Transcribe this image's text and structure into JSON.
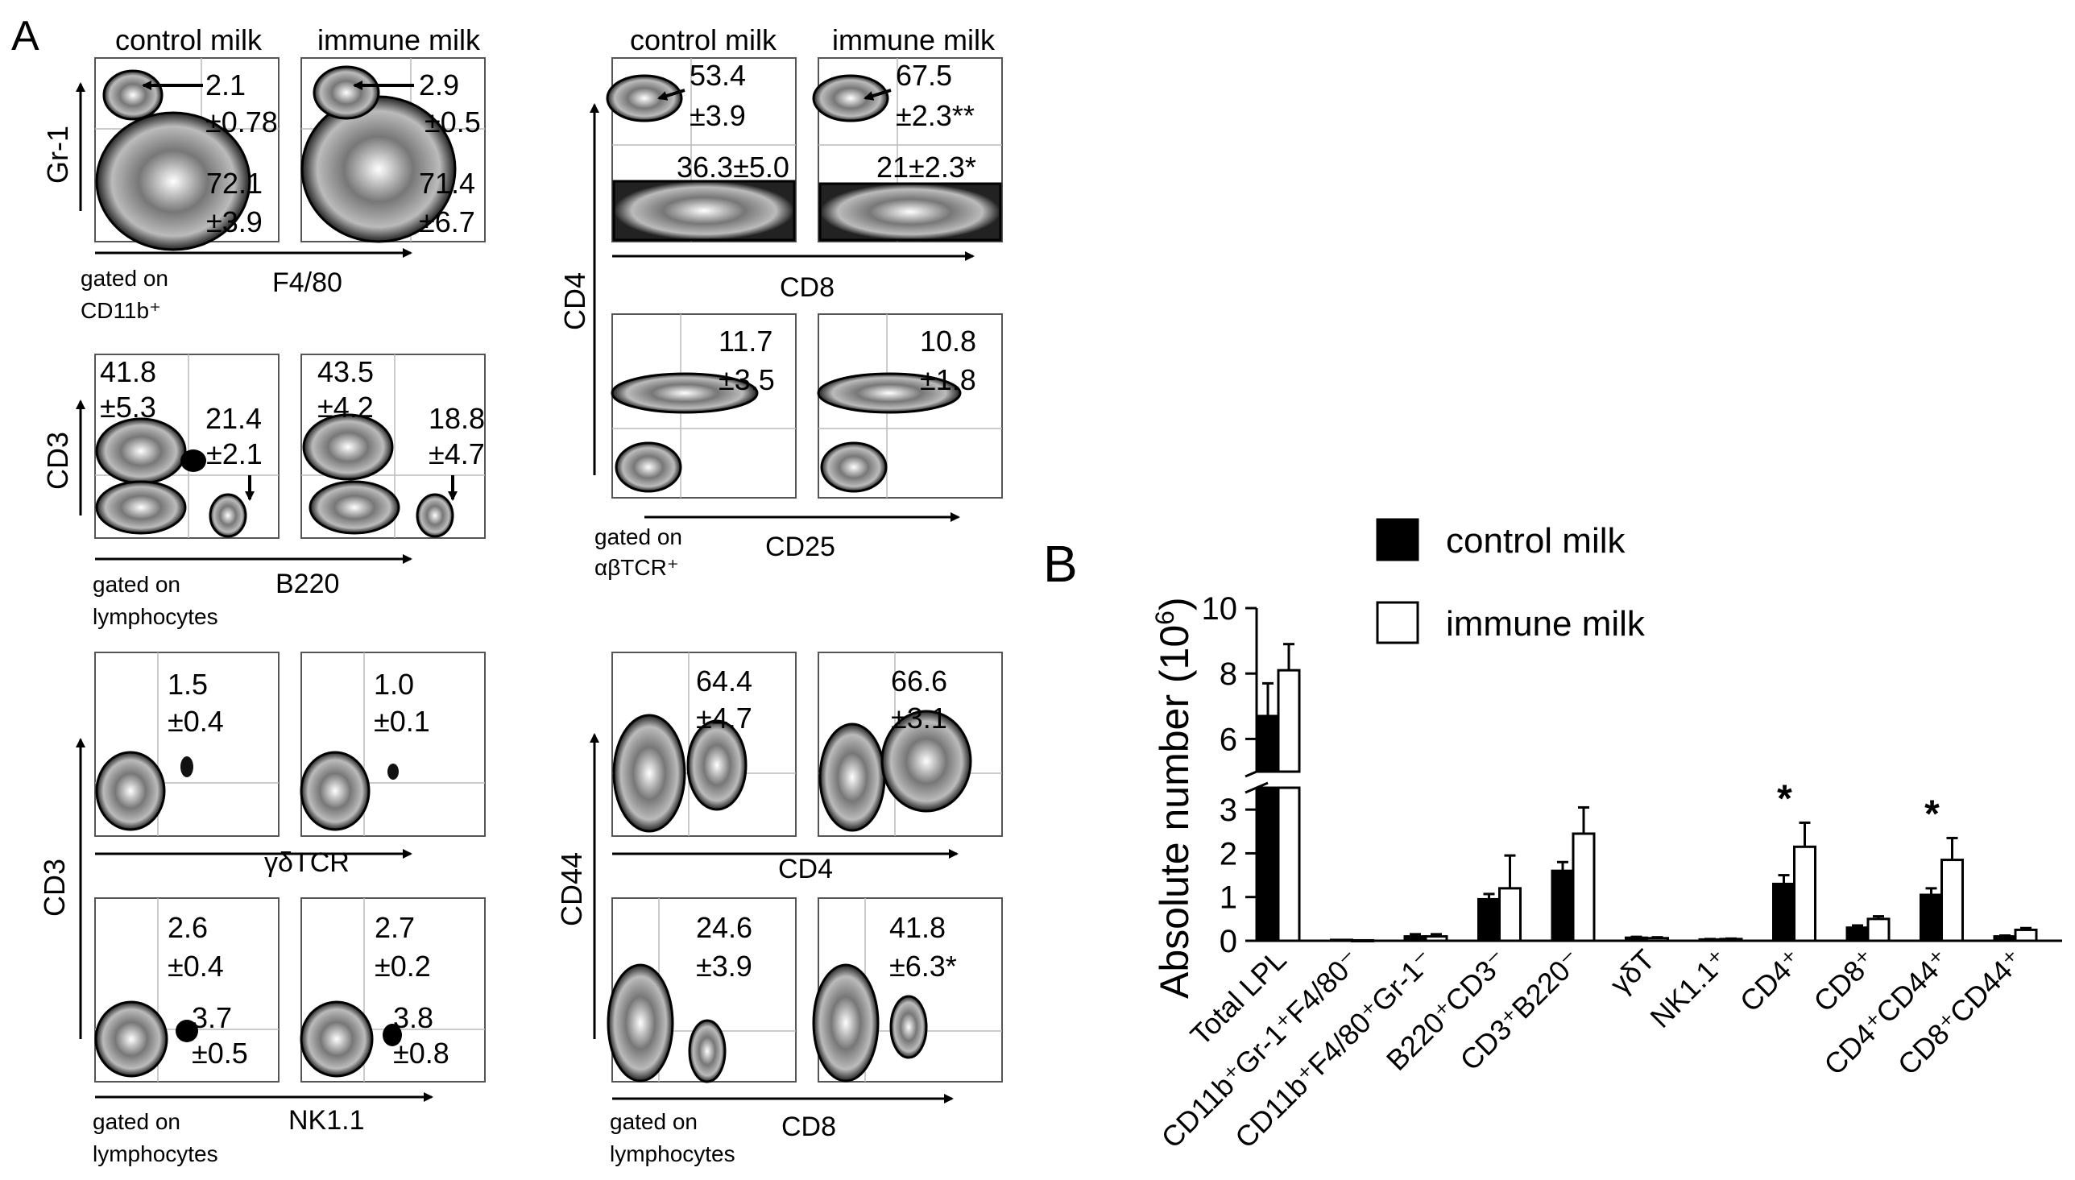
{
  "panel_labels": {
    "a": "A",
    "b": "B"
  },
  "flow": {
    "col_headers": {
      "control": "control milk",
      "immune": "immune milk"
    },
    "blocks": [
      {
        "id": "gr1",
        "y_axis": "Gr-1",
        "x_axis": "F4/80",
        "gate": [
          "gated on",
          "CD11b⁺"
        ],
        "control": [
          "2.1",
          "±0.78",
          "72.1",
          "±3.9"
        ],
        "immune": [
          "2.9",
          "±0.5",
          "71.4",
          "±6.7"
        ]
      },
      {
        "id": "cd3b220",
        "y_axis": "CD3",
        "x_axis": "B220",
        "gate": [
          "gated on",
          "lymphocytes"
        ],
        "control": [
          "41.8",
          "±5.3",
          "21.4",
          "±2.1"
        ],
        "immune": [
          "43.5",
          "±4.2",
          "18.8",
          "±4.7"
        ]
      },
      {
        "id": "gdtcr",
        "y_axis": "CD3",
        "x_axis": "γδTCR",
        "control": [
          "1.5",
          "±0.4"
        ],
        "immune": [
          "1.0",
          "±0.1"
        ]
      },
      {
        "id": "nk11",
        "x_axis": "NK1.1",
        "gate": [
          "gated on",
          "lymphocytes"
        ],
        "control": [
          "2.6",
          "±0.4",
          "3.7",
          "±0.5"
        ],
        "immune": [
          "2.7",
          "±0.2",
          "3.8",
          "±0.8"
        ]
      },
      {
        "id": "cd4cd8",
        "y_axis": "CD4",
        "x_axis": "CD8",
        "control": [
          "53.4",
          "±3.9",
          "36.3±5.0"
        ],
        "immune": [
          "67.5",
          "±2.3**",
          "21±2.3*"
        ]
      },
      {
        "id": "cd25",
        "x_axis": "CD25",
        "gate": [
          "gated on",
          "αβTCR⁺"
        ],
        "control": [
          "11.7",
          "±3.5"
        ],
        "immune": [
          "10.8",
          "±1.8"
        ]
      },
      {
        "id": "cd44cd4",
        "y_axis": "CD44",
        "x_axis": "CD4",
        "control": [
          "64.4",
          "±4.7"
        ],
        "immune": [
          "66.6",
          "±3.1"
        ]
      },
      {
        "id": "cd44cd8",
        "x_axis": "CD8",
        "gate": [
          "gated on",
          "lymphocytes"
        ],
        "control": [
          "24.6",
          "±3.9"
        ],
        "immune": [
          "41.8",
          "±6.3*"
        ]
      }
    ]
  },
  "chart_data": {
    "type": "bar",
    "ylabel": "Absolute number (10⁶)",
    "ylabel_main": "Absolute number (10",
    "ylabel_exp": "6",
    "ylabel_close": ")",
    "y_break": true,
    "ylim_lower": [
      0,
      3.5
    ],
    "ylim_upper": [
      5,
      10
    ],
    "yticks_lower": [
      "0",
      "1",
      "2",
      "3"
    ],
    "yticks_upper": [
      "6",
      "8",
      "10"
    ],
    "categories": [
      "Total LPL",
      "CD11b⁺Gr-1⁺F4/80⁻",
      "CD11b⁺F4/80⁺Gr-1⁻",
      "B220⁺CD3⁻",
      "CD3⁺B220⁻",
      "γδT",
      "NK1.1⁺",
      "CD4⁺",
      "CD8⁺",
      "CD4⁺CD44⁺",
      "CD8⁺CD44⁺"
    ],
    "series": [
      {
        "name": "control milk",
        "color": "#000000",
        "values": [
          6.7,
          0.02,
          0.1,
          0.95,
          1.6,
          0.07,
          0.03,
          1.3,
          0.3,
          1.05,
          0.1
        ],
        "errors": [
          1.0,
          0.0,
          0.05,
          0.12,
          0.2,
          0.02,
          0.01,
          0.2,
          0.05,
          0.15,
          0.02
        ]
      },
      {
        "name": "immune milk",
        "color": "#ffffff",
        "values": [
          8.1,
          0.01,
          0.1,
          1.2,
          2.45,
          0.06,
          0.04,
          2.15,
          0.5,
          1.85,
          0.25
        ],
        "errors": [
          0.8,
          0.0,
          0.05,
          0.75,
          0.6,
          0.02,
          0.01,
          0.55,
          0.06,
          0.5,
          0.04
        ]
      }
    ],
    "significance": [
      {
        "category": "CD4⁺",
        "label": "*"
      },
      {
        "category": "CD4⁺CD44⁺",
        "label": "*"
      }
    ],
    "legend": [
      "control milk",
      "immune milk"
    ],
    "legend_position": "top"
  }
}
